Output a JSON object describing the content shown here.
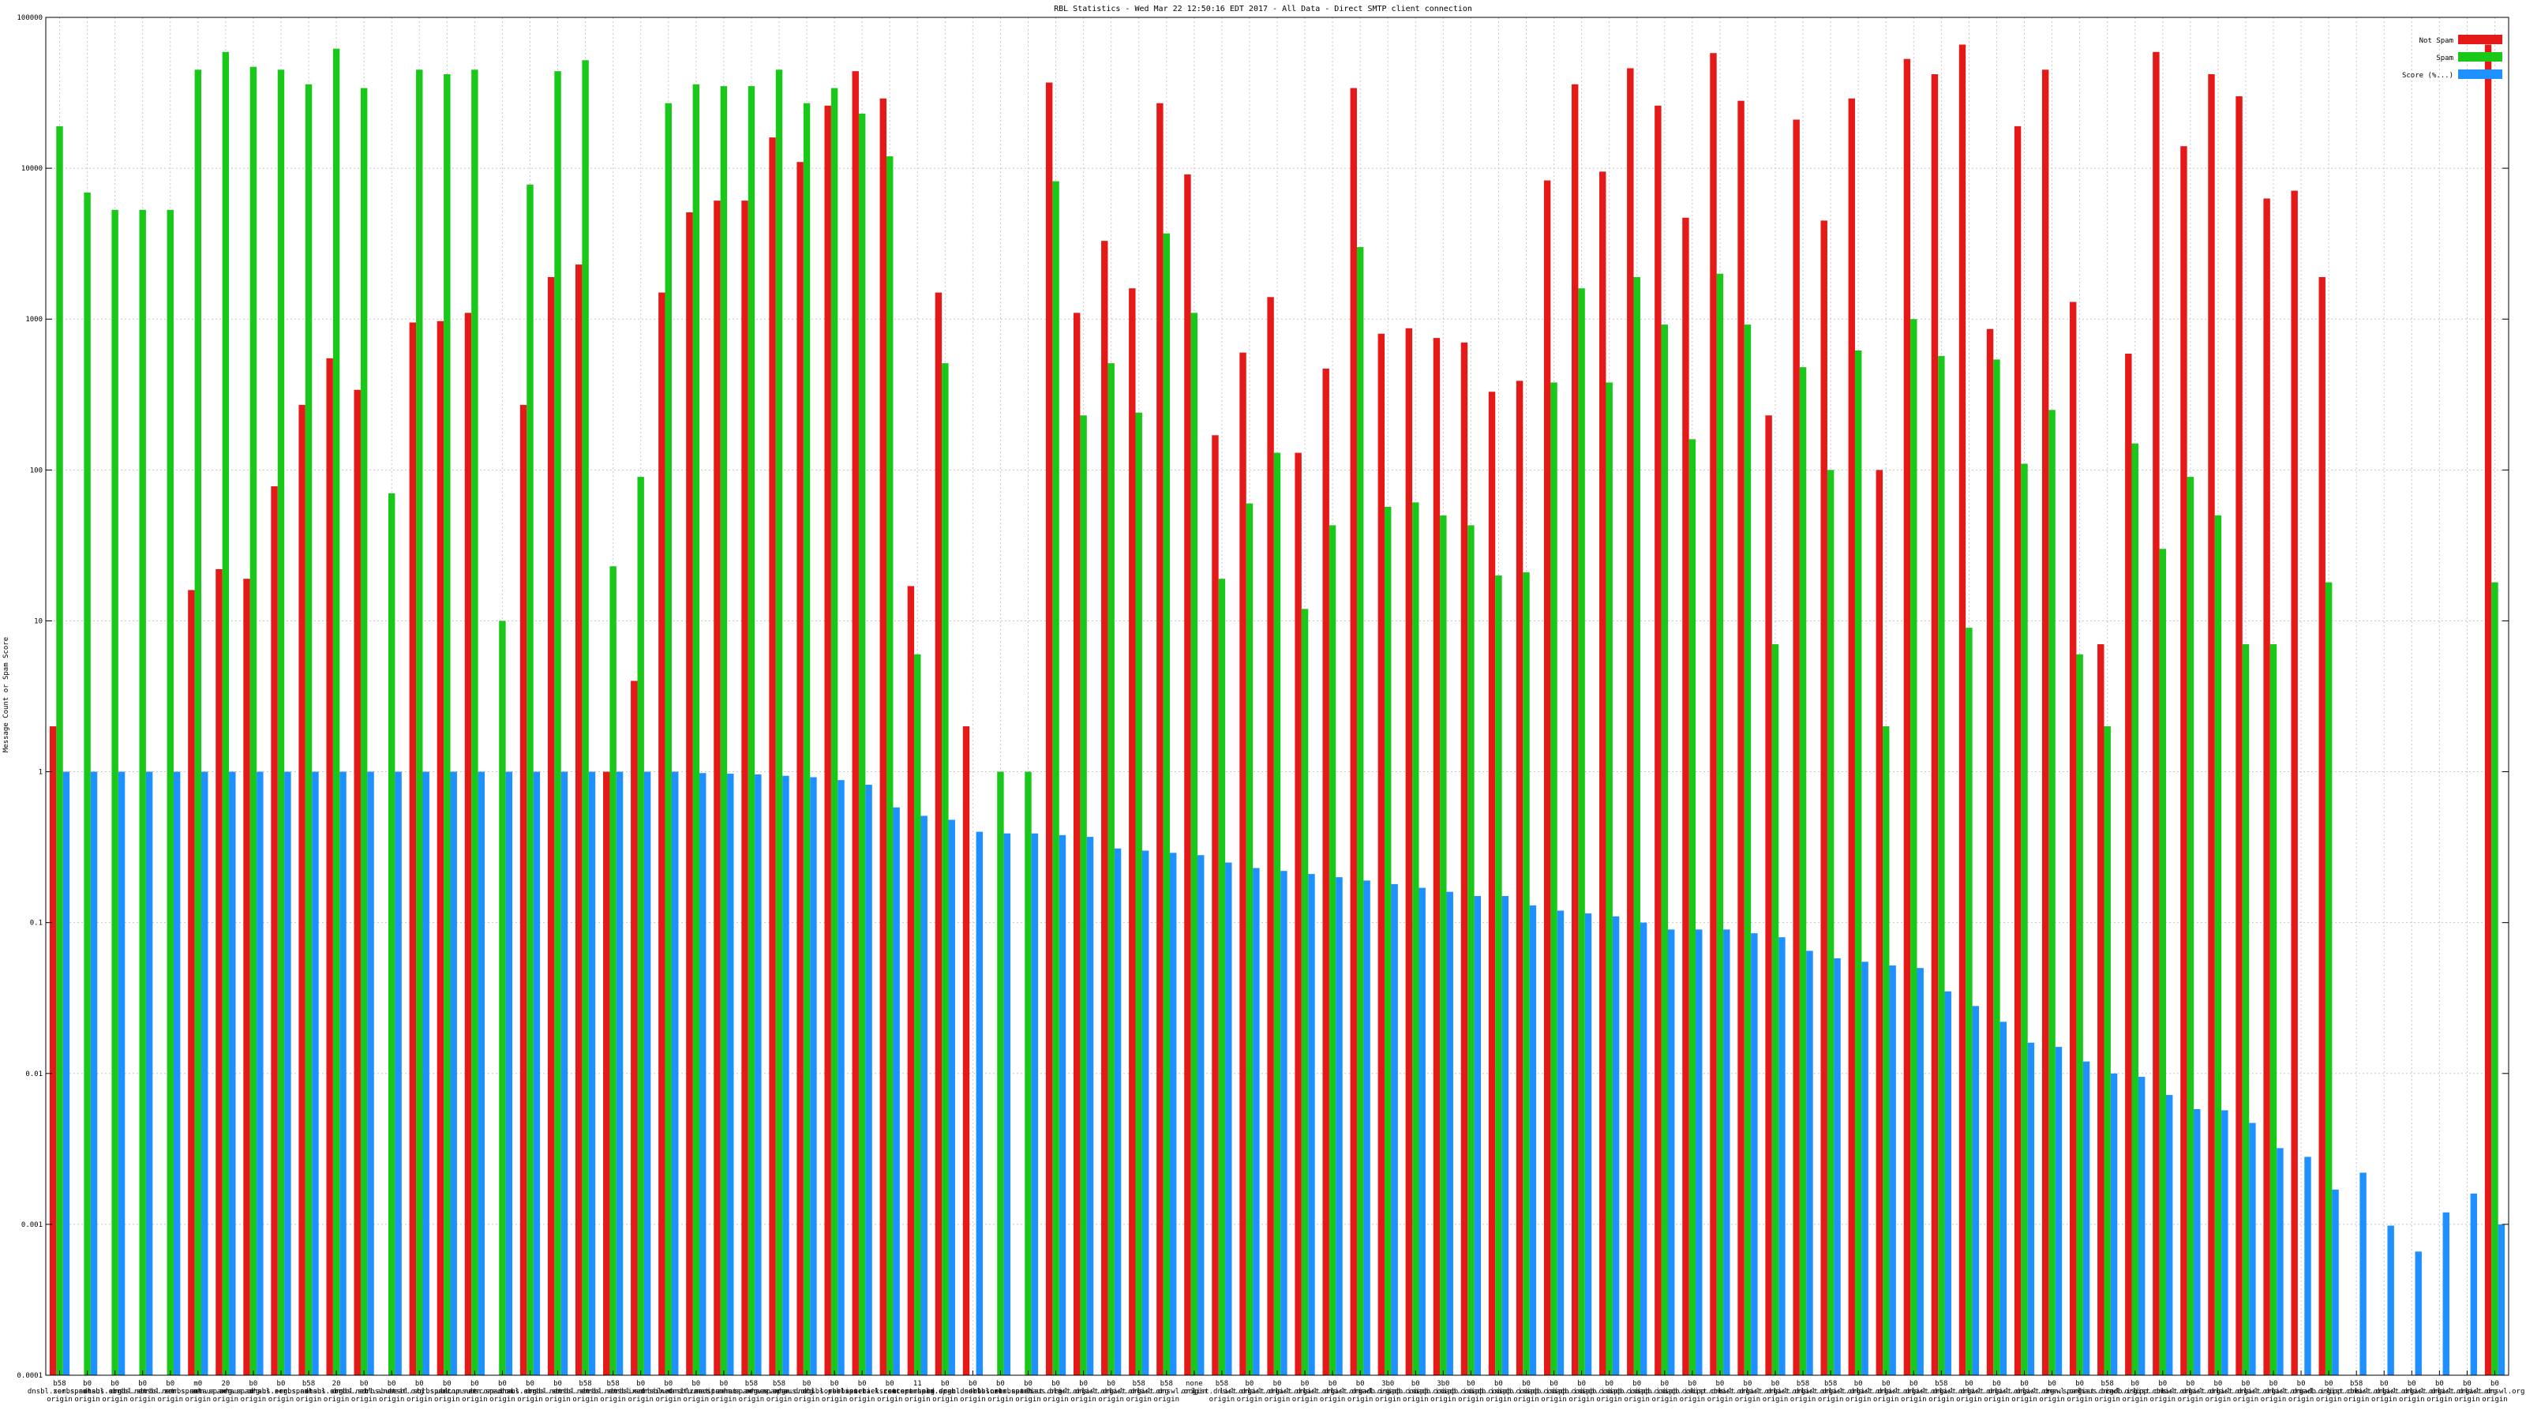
{
  "chart_data": {
    "type": "bar",
    "title": "RBL Statistics - Wed Mar 22 12:50:16 EDT 2017 - All Data - Direct SMTP client connection",
    "xlabel": "",
    "ylabel": "Message Count or Spam Score",
    "yscale": "log",
    "ylim": [
      0.0001,
      100000
    ],
    "y_ticks": [
      "0.0001",
      "0.001",
      "0.01",
      "0.1",
      "1",
      "10",
      "100",
      "1000",
      "10000",
      "100000"
    ],
    "grid": true,
    "legend_position": "top-right",
    "colors": {
      "not_spam": "#e61919",
      "spam": "#19c819",
      "score": "#1e90ff"
    },
    "categories": [
      "b58 dnsbl.sorbs.net origin",
      "b0 zen.spamhaus.org origin",
      "b0 dnsbl.sorbs.net origin",
      "b0 dnsbl.sorbs.net origin",
      "b0 dnsbl.sorbs.net origin",
      "m0 zen.spamhaus.org origin",
      "20 zen.spamhaus.org origin",
      "b0 zen.spamhaus.org origin",
      "b0 dnsbl.sorbs.net origin",
      "b58 zen.spamhaus.org origin",
      "20 dnsbl.sorbs.net origin",
      "b0 dnsbl.sorbs.net origin",
      "b0 cbl.abuseat.org origin",
      "b0 dnsbl.sorbs.net origin",
      "b0 bl.spamcop.net origin",
      "b0 ubl.unsubscore.com origin",
      "b0 zen.spamhaus.org origin",
      "b0 dnsbl.sorbs.net origin",
      "b0 dnsbl.sorbs.net origin",
      "b58 dnsbl.sorbs.net origin",
      "b58 dnsbl.sorbs.net origin",
      "b0 dnsbl.sorbs.net origin",
      "b0 ix.dnsbl.manitu.net origin",
      "b0 ix.dnsbl.manitu.net origin",
      "b0 zen.spamhaus.org origin",
      "b58 zen.spamhaus.org origin",
      "b58 zen.spamhaus.org origin",
      "b0 new.spam.dnsbl.sorbs.net origin",
      "b0 dnsbl.sorbs.net origin",
      "b0 psbl.surriel.com origin",
      "b0 ips.backscatterer.org origin",
      "11 zen.spamhaus.org origin",
      "b0 recent.spam.dnsbl.sorbs.net origin",
      "b0 old.spam.dnsbl.sorbs.net origin",
      "b0 dnsbl.sorbs.net origin",
      "b0 zen.spamhaus.org origin",
      "b0 list.dnswl.org origin",
      "b0 list.dnswl.org origin",
      "b0 list.dnswl.org origin",
      "b58 list.dnswl.org origin",
      "b58 list.dnswl.org origin",
      "none origin",
      "b58 list.dnswl.org origin",
      "b0 list.dnswl.org origin",
      "b0 list.dnswl.org origin",
      "b0 list.dnswl.org origin",
      "b0 list.dnswl.org origin",
      "b0 list.dnswl.org origin",
      "3b0 iadb.isipp.com origin",
      "b0 iadb.isipp.com origin",
      "3b0 iadb.isipp.com origin",
      "b0 iadb.isipp.com origin",
      "b0 iadb.isipp.com origin",
      "b0 iadb.isipp.com origin",
      "b0 iadb.isipp.com origin",
      "b0 iadb.isipp.com origin",
      "b0 iadb.isipp.com origin",
      "b0 iadb.isipp.com origin",
      "b0 iadb.isipp.com origin",
      "b0 iadb.isipp.com origin",
      "b0 list.dnswl.org origin",
      "b0 list.dnswl.org origin",
      "b0 list.dnswl.org origin",
      "b58 list.dnswl.org origin",
      "b58 list.dnswl.org origin",
      "b0 list.dnswl.org origin",
      "b0 list.dnswl.org origin",
      "b0 list.dnswl.org origin",
      "b58 list.dnswl.org origin",
      "b0 list.dnswl.org origin",
      "b0 list.dnswl.org origin",
      "b0 list.dnswl.org origin",
      "b0 list.dnswl.org origin",
      "b0 zen.spamhaus.org origin",
      "b58 list.dnswl.org origin",
      "b0 iadb.isipp.com origin",
      "b0 list.dnswl.org origin",
      "b0 list.dnswl.org origin",
      "b0 list.dnswl.org origin",
      "b0 list.dnswl.org origin",
      "b0 list.dnswl.org origin",
      "b0 list.dnswl.org origin",
      "b0 iadb.isipp.com origin",
      "b58 list.dnswl.org origin",
      "b0 list.dnswl.org origin",
      "b0 list.dnswl.org origin",
      "b0 list.dnswl.org origin",
      "b0 list.dnswl.org origin",
      "b0 list.dnswl.org origin"
    ],
    "series": [
      {
        "name": "Not Spam",
        "values": [
          2,
          0,
          0,
          0,
          0,
          16,
          22,
          19,
          78,
          270,
          550,
          340,
          0,
          950,
          970,
          1100,
          0,
          270,
          1900,
          2300,
          1,
          4,
          1500,
          5100,
          6100,
          6100,
          16000,
          11000,
          26000,
          44000,
          29000,
          17,
          1500,
          2,
          0,
          0,
          37000,
          1100,
          3300,
          1600,
          27000,
          9100,
          170,
          600,
          1400,
          130,
          470,
          34000,
          800,
          870,
          750,
          700,
          330,
          390,
          8300,
          36000,
          9500,
          46000,
          26000,
          4700,
          58000,
          28000,
          230,
          21000,
          4500,
          29000,
          100,
          53000,
          42000,
          66000,
          860,
          19000,
          45000,
          1300,
          7,
          590,
          59000,
          14000,
          42000,
          30000,
          6300,
          7100,
          1900,
          0,
          0,
          0,
          0,
          0,
          66000
        ]
      },
      {
        "name": "Spam",
        "values": [
          19000,
          6900,
          5300,
          5300,
          5300,
          45000,
          59000,
          47000,
          45000,
          36000,
          62000,
          34000,
          70,
          45000,
          42000,
          45000,
          10,
          7800,
          44000,
          52000,
          23,
          90,
          27000,
          36000,
          35000,
          35000,
          45000,
          27000,
          34000,
          23000,
          12000,
          6,
          510,
          0,
          1,
          1,
          8200,
          230,
          510,
          240,
          3700,
          1100,
          19,
          60,
          130,
          12,
          43,
          3000,
          57,
          61,
          50,
          43,
          20,
          21,
          380,
          1600,
          380,
          1900,
          920,
          160,
          2000,
          920,
          7,
          480,
          100,
          620,
          2,
          1000,
          570,
          9,
          540,
          110,
          250,
          6,
          2,
          150,
          30,
          90,
          50,
          7,
          7,
          0,
          18,
          0,
          0,
          0,
          0,
          0,
          18
        ]
      },
      {
        "name": "Score (%...)",
        "values": [
          1,
          1,
          1,
          1,
          1,
          1,
          1,
          1,
          1,
          1,
          1,
          1,
          1,
          1,
          1,
          1,
          1,
          1,
          1,
          1,
          1,
          1,
          1,
          0.98,
          0.97,
          0.96,
          0.94,
          0.92,
          0.88,
          0.82,
          0.58,
          0.51,
          0.48,
          0.4,
          0.39,
          0.39,
          0.38,
          0.37,
          0.31,
          0.3,
          0.29,
          0.28,
          0.25,
          0.23,
          0.22,
          0.21,
          0.2,
          0.19,
          0.18,
          0.17,
          0.16,
          0.15,
          0.15,
          0.13,
          0.12,
          0.115,
          0.11,
          0.1,
          0.09,
          0.09,
          0.09,
          0.085,
          0.08,
          0.065,
          0.058,
          0.055,
          0.052,
          0.05,
          0.035,
          0.028,
          0.022,
          0.016,
          0.015,
          0.012,
          0.01,
          0.0095,
          0.0072,
          0.0058,
          0.0057,
          0.0047,
          0.0032,
          0.0028,
          0.0017,
          0.0022,
          0.00098,
          0.00066,
          0.0012,
          0.0016,
          0.001
        ]
      }
    ]
  }
}
